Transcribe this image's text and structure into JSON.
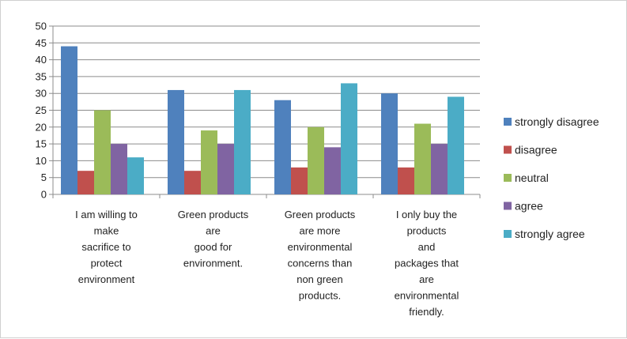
{
  "chart_data": {
    "type": "bar",
    "title": "",
    "xlabel": "",
    "ylabel": "",
    "ylim": [
      0,
      50
    ],
    "yticks": [
      0,
      5,
      10,
      15,
      20,
      25,
      30,
      35,
      40,
      45,
      50
    ],
    "grid": true,
    "legend_position": "right",
    "categories": [
      [
        "I am willing to",
        "make",
        "sacrifice to",
        "protect",
        "environment"
      ],
      [
        "Green products",
        "are",
        "good for",
        "environment."
      ],
      [
        "Green products",
        "are more",
        "environmental",
        "concerns than",
        "non green",
        "products."
      ],
      [
        "I only buy the",
        "products",
        "and",
        "packages that",
        "are",
        "environmental",
        "friendly."
      ]
    ],
    "series": [
      {
        "name": "strongly disagree",
        "color": "#4F81BD",
        "values": [
          44,
          31,
          28,
          30
        ]
      },
      {
        "name": "disagree",
        "color": "#C0504D",
        "values": [
          7,
          7,
          8,
          8
        ]
      },
      {
        "name": "neutral",
        "color": "#9BBB59",
        "values": [
          25,
          19,
          20,
          21
        ]
      },
      {
        "name": "agree",
        "color": "#8064A2",
        "values": [
          15,
          15,
          14,
          15
        ]
      },
      {
        "name": "strongly agree",
        "color": "#4BACC6",
        "values": [
          11,
          31,
          33,
          29
        ]
      }
    ]
  }
}
